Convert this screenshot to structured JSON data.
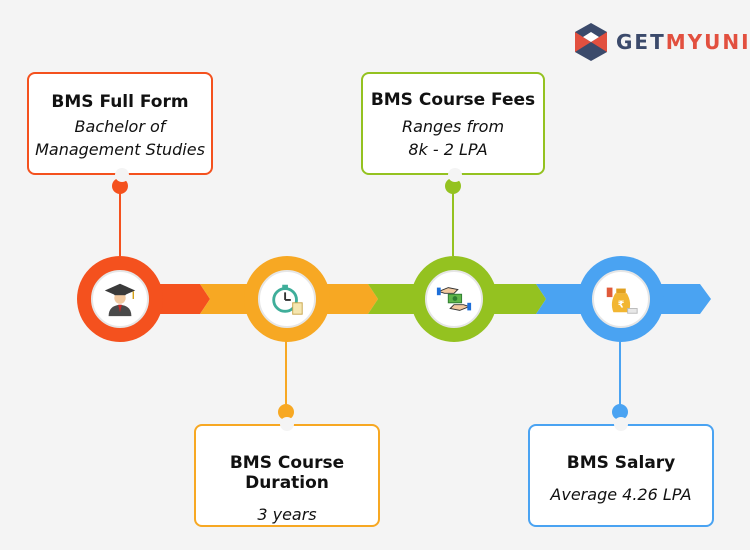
{
  "brand": {
    "prefix": "GET",
    "highlight": "MYUNI"
  },
  "colors": {
    "orange": "#f4511e",
    "amber": "#f7a823",
    "green": "#94c220",
    "blue": "#4aa3f2",
    "logo_dark": "#3b4a6b",
    "logo_red": "#e2503f"
  },
  "icons": {
    "full_form": "graduate-icon",
    "duration": "stopwatch-icon",
    "fees": "money-hand-icon",
    "salary": "money-bag-icon"
  },
  "cards": {
    "full_form": {
      "title": "BMS Full Form",
      "line1": "Bachelor of",
      "line2": "Management Studies"
    },
    "fees": {
      "title": "BMS Course Fees",
      "line1": "Ranges from",
      "line2": "8k - 2 LPA"
    },
    "duration": {
      "title": "BMS Course Duration",
      "line1": "3 years"
    },
    "salary": {
      "title": "BMS Salary",
      "line1": "Average 4.26 LPA"
    }
  }
}
